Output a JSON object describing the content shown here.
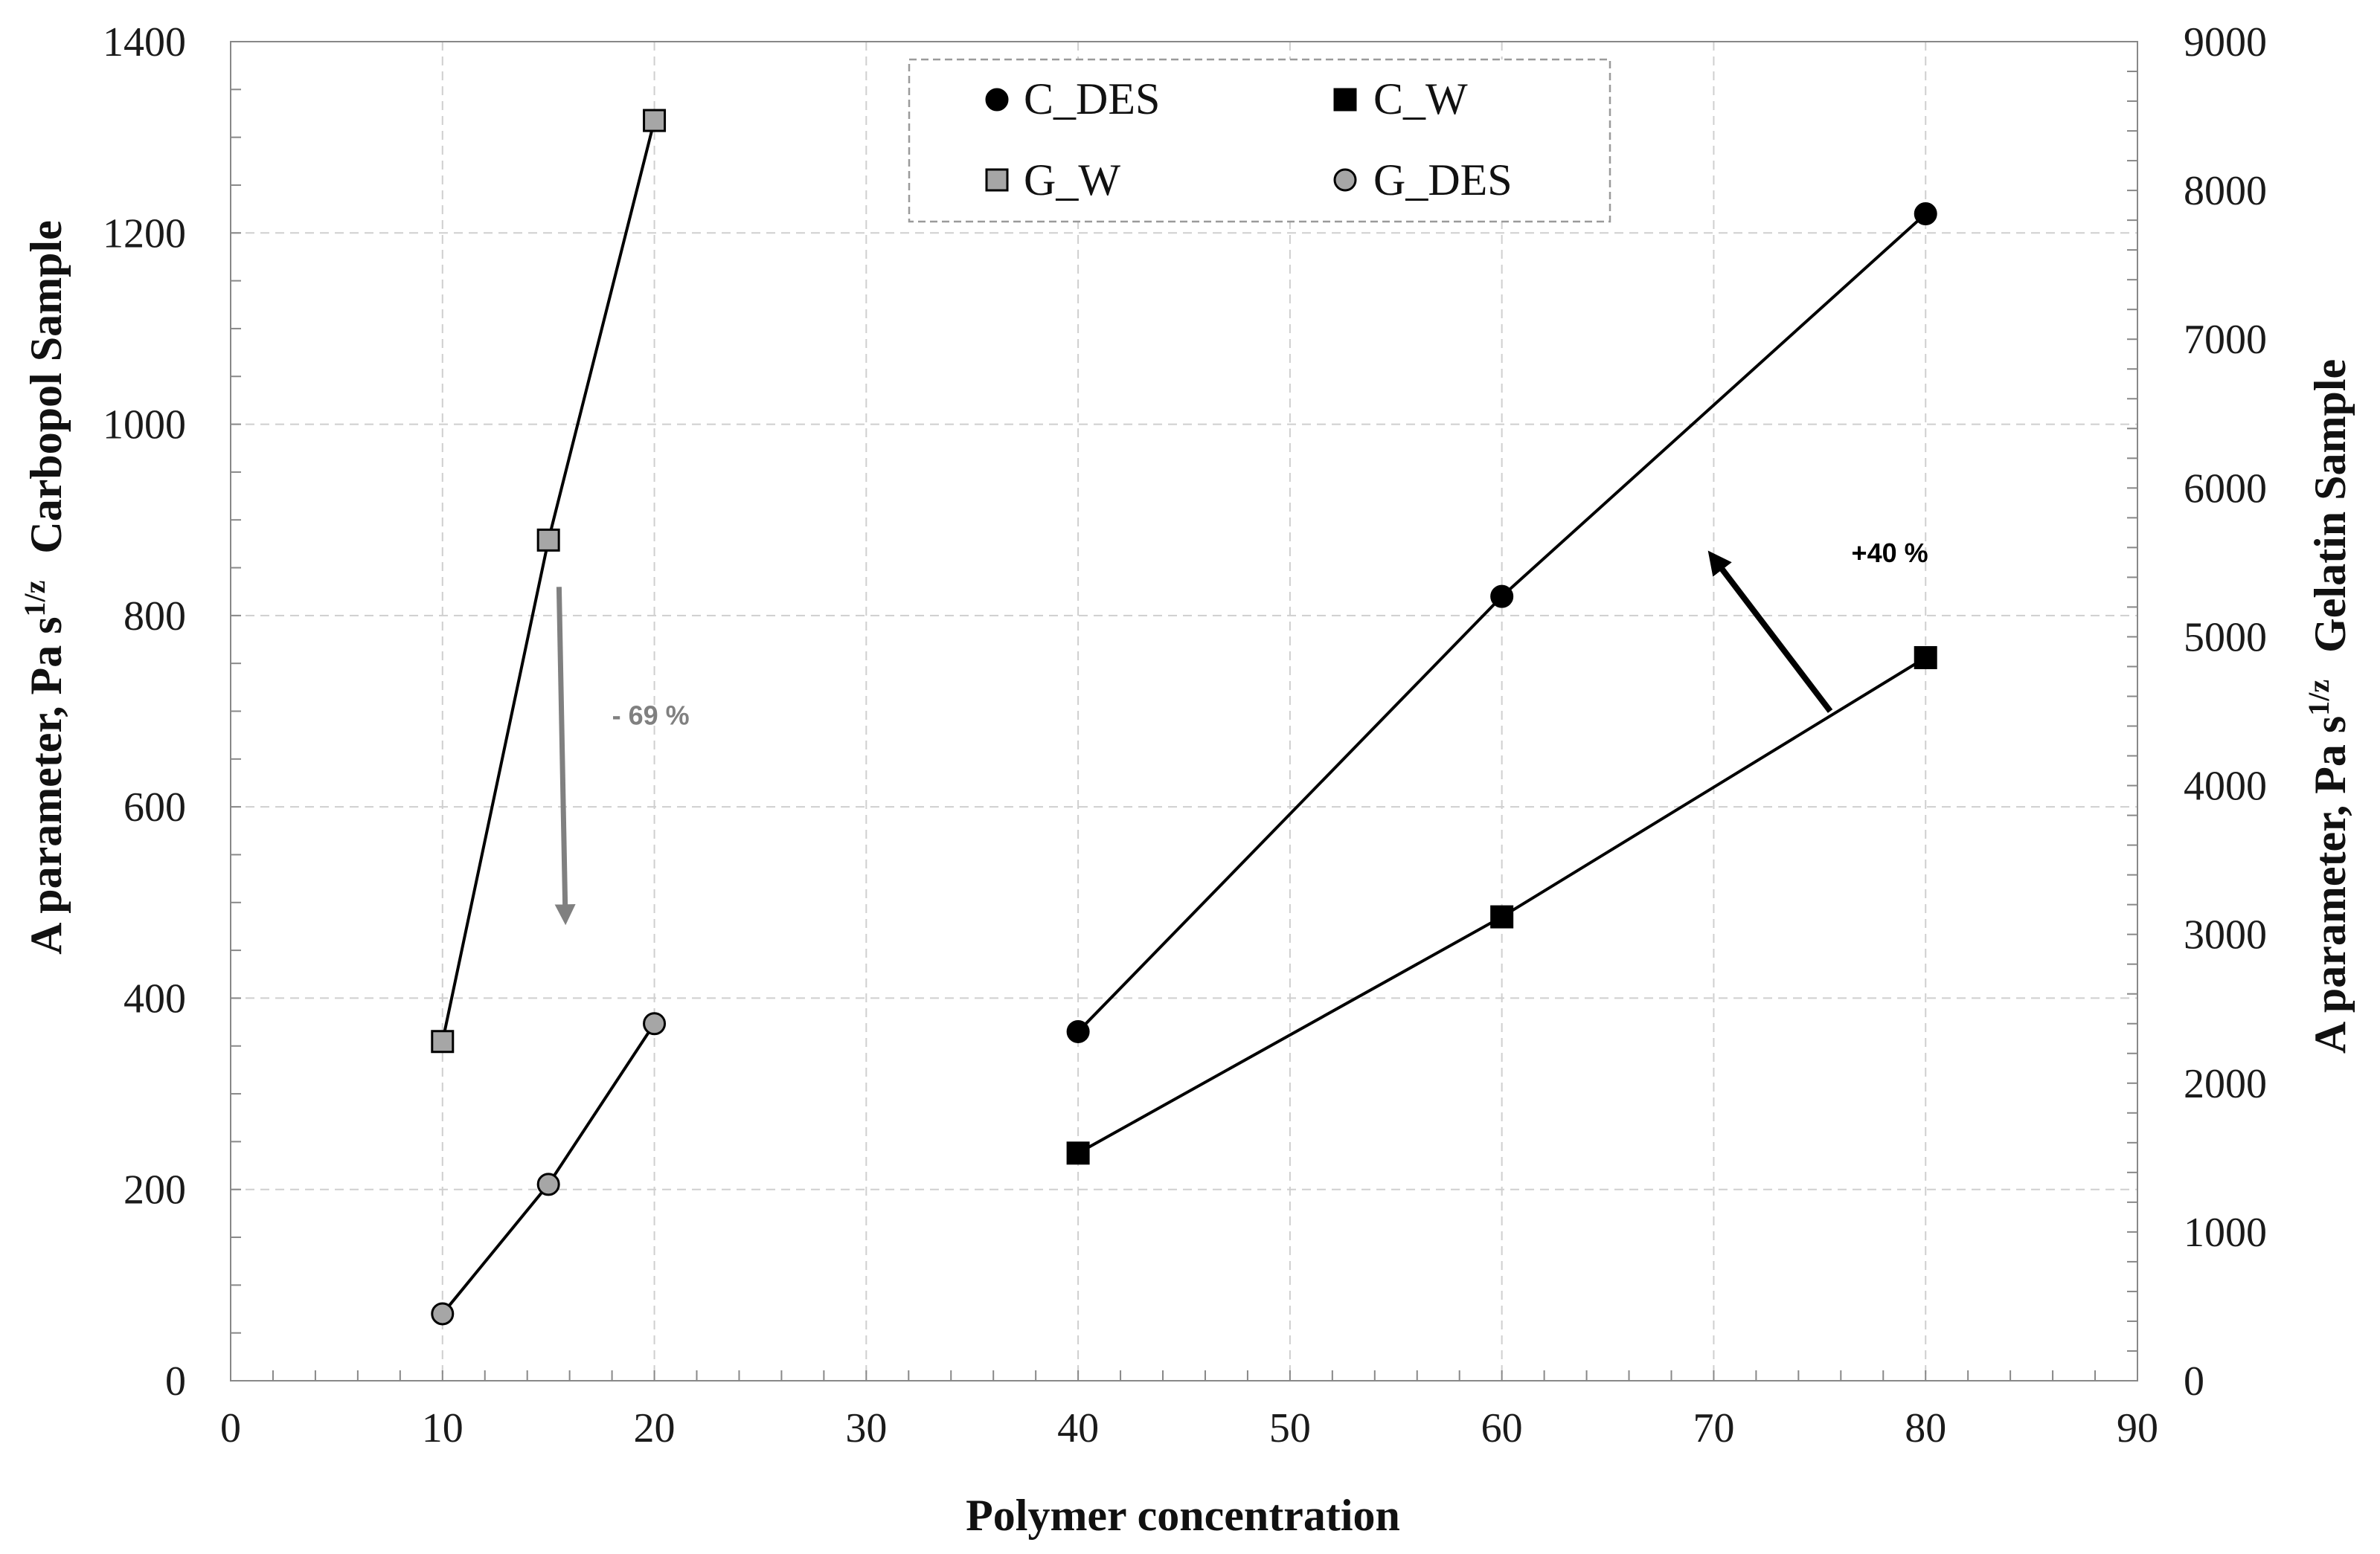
{
  "chart_data": {
    "type": "line",
    "xlabel": "Polymer concentration",
    "ylabel_left": "A parameter, Pa s",
    "ylabel_left_sup": "1/z",
    "ylabel_left_sample": "Carbopol Sample",
    "ylabel_right": "A parameter, Pa s",
    "ylabel_right_sup": "1/z",
    "ylabel_right_sample": "Gelatin Sample",
    "xlim": [
      0,
      90
    ],
    "ylim_left": [
      0,
      1400
    ],
    "ylim_right": [
      0,
      9000
    ],
    "x_ticks": [
      "0",
      "10",
      "20",
      "30",
      "40",
      "50",
      "60",
      "70",
      "80",
      "90"
    ],
    "y_left_ticks": [
      "0",
      "200",
      "400",
      "600",
      "800",
      "1000",
      "1200",
      "1400"
    ],
    "y_right_ticks": [
      "0",
      "1000",
      "2000",
      "3000",
      "4000",
      "5000",
      "6000",
      "7000",
      "8000",
      "9000"
    ],
    "grid": true,
    "legend_position": "top-center",
    "series": [
      {
        "name": "C_DES",
        "axis": "left",
        "marker": "circle",
        "color": "#000000",
        "x": [
          40,
          60,
          80
        ],
        "y": [
          365,
          820,
          1220
        ]
      },
      {
        "name": "C_W",
        "axis": "left",
        "marker": "square",
        "color": "#000000",
        "x": [
          40,
          60,
          80
        ],
        "y": [
          238,
          485,
          756
        ]
      },
      {
        "name": "G_W",
        "axis": "right",
        "marker": "square",
        "color": "#a6a6a6",
        "x": [
          10,
          15,
          20
        ],
        "y": [
          2280,
          5650,
          8470
        ]
      },
      {
        "name": "G_DES",
        "axis": "right",
        "marker": "circle",
        "color": "#a6a6a6",
        "x": [
          10,
          15,
          20
        ],
        "y": [
          450,
          1320,
          2400
        ]
      }
    ],
    "annotations": [
      {
        "text": "+40 %",
        "color": "#000000",
        "label_x": 76.5,
        "label_y": 856,
        "arrow_from": [
          75.5,
          700
        ],
        "arrow_to": [
          70,
          860
        ]
      },
      {
        "text": "- 69 %",
        "color": "#808080",
        "label_x": 18,
        "label_y": 686,
        "arrow_from": [
          15.5,
          830
        ],
        "arrow_to": [
          15.8,
          485
        ]
      }
    ]
  }
}
